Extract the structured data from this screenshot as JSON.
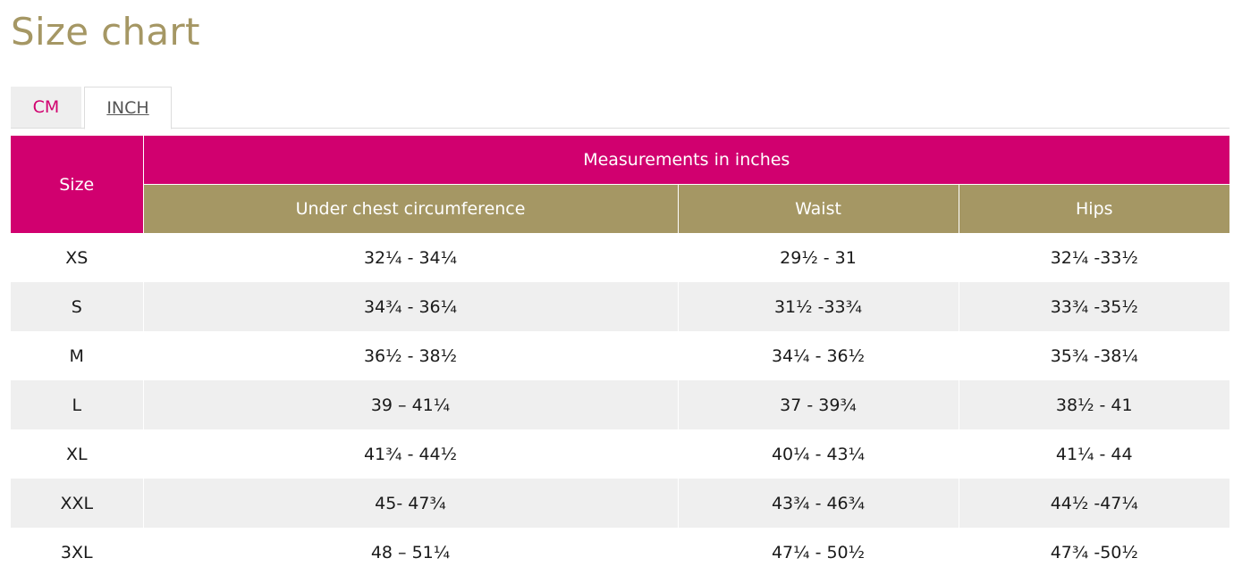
{
  "page": {
    "title": "Size chart"
  },
  "tabs": [
    {
      "label": "CM",
      "active": false
    },
    {
      "label": "INCH",
      "active": true
    }
  ],
  "table": {
    "size_header": "Size",
    "group_header": "Measurements in inches",
    "columns": [
      "Under chest circumference",
      "Waist",
      "Hips"
    ],
    "rows": [
      {
        "size": "XS",
        "under_chest": "32¼ - 34¼",
        "waist": "29½  - 31",
        "hips": "32¼ -33½"
      },
      {
        "size": "S",
        "under_chest": "34¾ - 36¼",
        "waist": "31½  -33¾",
        "hips": "33¾ -35½"
      },
      {
        "size": "M",
        "under_chest": "36½  - 38½",
        "waist": "34¼ - 36½",
        "hips": " 35¾ -38¼"
      },
      {
        "size": "L",
        "under_chest": "39 – 41¼",
        "waist": "37 - 39¾",
        "hips": "38½  - 41"
      },
      {
        "size": "XL",
        "under_chest": "41¾ - 44½",
        "waist": " 40¼ - 43¼",
        "hips": "41¼ - 44"
      },
      {
        "size": "XXL",
        "under_chest": "45- 47¾",
        "waist": " 43¾ - 46¾",
        "hips": "44½  -47¼"
      },
      {
        "size": "3XL",
        "under_chest": "48 – 51¼",
        "waist": "47¼ - 50½",
        "hips": "47¾ -50½"
      }
    ]
  },
  "colors": {
    "accent_magenta": "#d1006f",
    "accent_gold": "#a59764",
    "row_alt": "#efefef"
  }
}
